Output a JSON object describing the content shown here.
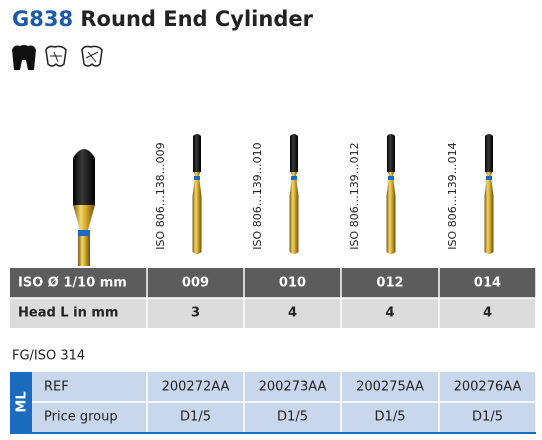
{
  "header": {
    "code": "G838",
    "title": "Round End Cylinder"
  },
  "iso_labels": [
    "ISO 806…138…009",
    "ISO 806…139…010",
    "ISO 806…139…012",
    "ISO 806…139…014"
  ],
  "size_table": {
    "rows": [
      [
        "ISO Ø 1/10 mm",
        "009",
        "010",
        "012",
        "014"
      ],
      [
        "Head L in mm",
        "3",
        "4",
        "4",
        "4"
      ]
    ]
  },
  "shank": "FG/ISO 314",
  "order_table": {
    "group": "ML",
    "rows": [
      [
        "REF",
        "200272AA",
        "200273AA",
        "200275AA",
        "200276AA"
      ],
      [
        "Price group",
        "D1/5",
        "D1/5",
        "D1/5",
        "D1/5"
      ]
    ]
  }
}
